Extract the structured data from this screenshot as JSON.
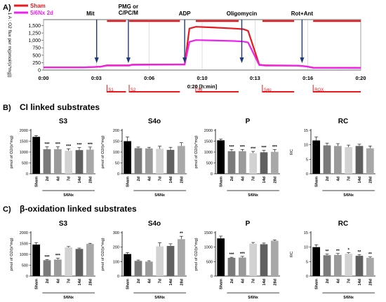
{
  "panel_labels": {
    "a": "A)",
    "b": "B)",
    "c": "C)"
  },
  "section_titles": {
    "b": "CI linked substrates",
    "c": "β-oxidation linked substrates"
  },
  "colors": {
    "sham": "#e8191f",
    "nx": "#ee22ee",
    "arrow": "#1f3a7a",
    "segment": "#e8191f"
  },
  "chart_data": [
    {
      "type": "line",
      "panel": "A",
      "ylabel": "1 A : O2 flux per m(pmol/(s*mg))",
      "xlabel": "0:20 [h:min]",
      "xlim": [
        0,
        20
      ],
      "ylim": [
        0,
        1700
      ],
      "y_ticks": [
        "0",
        "250",
        "500",
        "750",
        "1,000",
        "1,250",
        "1,500"
      ],
      "x_ticks": [
        "0:00",
        "0:03",
        "0:06",
        "0:10",
        "0:13",
        "0:16",
        "0:20"
      ],
      "legend": [
        "Sham",
        "5/6Nx 2d"
      ],
      "series": [
        {
          "name": "Sham",
          "x": [
            0,
            2.5,
            3.6,
            4.0,
            5.4,
            5.6,
            8.4,
            8.9,
            9.2,
            9.6,
            10.5,
            12.0,
            12.6,
            12.9,
            13.6,
            14.0,
            16.0,
            16.6,
            17.0,
            20.0
          ],
          "values": [
            90,
            90,
            115,
            160,
            160,
            185,
            190,
            190,
            1400,
            1460,
            1440,
            1400,
            1380,
            1320,
            180,
            160,
            150,
            120,
            80,
            75
          ]
        },
        {
          "name": "5/6Nx 2d",
          "x": [
            0,
            2.5,
            3.6,
            4.0,
            5.4,
            5.6,
            8.4,
            8.9,
            9.2,
            9.6,
            10.5,
            12.0,
            12.6,
            12.9,
            13.6,
            14.0,
            16.0,
            16.6,
            17.0,
            20.0
          ],
          "values": [
            90,
            90,
            110,
            150,
            150,
            175,
            185,
            185,
            950,
            1010,
            1000,
            980,
            960,
            930,
            170,
            150,
            150,
            120,
            75,
            70
          ]
        }
      ],
      "events": [
        {
          "label": "Mit",
          "x": 3.35
        },
        {
          "label": "PMG or\nC/PC/M",
          "x": 5.35
        },
        {
          "label": "ADP",
          "x": 8.9
        },
        {
          "label": "Oligomycin",
          "x": 12.5
        },
        {
          "label": "Rot+Ant",
          "x": 16.3
        }
      ],
      "segments": [
        {
          "label": "S1",
          "x0": 4.0,
          "x1": 5.2
        },
        {
          "label": "S2",
          "x0": 5.4,
          "x1": 8.6
        },
        {
          "label": "S3",
          "x0": 9.6,
          "x1": 12.3
        },
        {
          "label": "S4o",
          "x0": 13.8,
          "x1": 15.8
        },
        {
          "label": "ROX",
          "x0": 17.0,
          "x1": 20.0
        }
      ]
    },
    {
      "type": "bar",
      "panel": "B",
      "title": "S3",
      "ylabel": "pmol of O2/(s*mg)",
      "categories": [
        "Sham",
        "2d",
        "4d",
        "7d",
        "14d",
        "28d"
      ],
      "group_label": "5/6Nx",
      "values": [
        1700,
        1130,
        1130,
        1060,
        1090,
        1110
      ],
      "errors": [
        60,
        110,
        110,
        90,
        120,
        120
      ],
      "ylim": [
        0,
        2000
      ],
      "y_ticks": [
        "0",
        "500",
        "1000",
        "1500",
        "2000"
      ],
      "significance": [
        "",
        "***",
        "***",
        "***",
        "***",
        "***"
      ]
    },
    {
      "type": "bar",
      "panel": "B",
      "title": "S4o",
      "ylabel": "pmol of O2/(s*mg)",
      "categories": [
        "Sham",
        "2d",
        "4d",
        "7d",
        "14d",
        "28d"
      ],
      "group_label": "5/6Nx",
      "values": [
        150,
        118,
        117,
        115,
        110,
        128
      ],
      "errors": [
        20,
        5,
        5,
        12,
        12,
        15
      ],
      "ylim": [
        0,
        200
      ],
      "y_ticks": [
        "0",
        "50",
        "100",
        "150",
        "200"
      ],
      "significance": [
        "",
        "",
        "",
        "",
        "",
        ""
      ]
    },
    {
      "type": "bar",
      "panel": "B",
      "title": "P",
      "ylabel": "pmol of O2/(s*mg)",
      "categories": [
        "Sham",
        "2d",
        "4d",
        "7d",
        "14d",
        "28d"
      ],
      "group_label": "5/6Nx",
      "values": [
        1540,
        1040,
        1040,
        950,
        990,
        1010
      ],
      "errors": [
        60,
        80,
        80,
        80,
        90,
        110
      ],
      "ylim": [
        0,
        2000
      ],
      "y_ticks": [
        "0",
        "500",
        "1000",
        "1500",
        "2000"
      ],
      "significance": [
        "",
        "***",
        "***",
        "***",
        "***",
        "***"
      ]
    },
    {
      "type": "bar",
      "panel": "B",
      "title": "RC",
      "ylabel": "RC",
      "categories": [
        "Sham",
        "2d",
        "4d",
        "7d",
        "14d",
        "28d"
      ],
      "group_label": "5/6Nx",
      "values": [
        11.5,
        9.8,
        9.6,
        9.2,
        9.6,
        8.8
      ],
      "errors": [
        1.2,
        0.8,
        0.8,
        0.7,
        0.6,
        0.8
      ],
      "ylim": [
        0,
        15
      ],
      "y_ticks": [
        "0",
        "5",
        "10",
        "15"
      ],
      "significance": [
        "",
        "",
        "",
        "",
        "",
        ""
      ]
    },
    {
      "type": "bar",
      "panel": "C",
      "title": "S3",
      "ylabel": "pmol of O2/(s*mg)",
      "categories": [
        "Sham",
        "2d",
        "4d",
        "7d",
        "14d",
        "28d"
      ],
      "group_label": "5/6Nx",
      "values": [
        1450,
        730,
        760,
        1320,
        1250,
        1480
      ],
      "errors": [
        90,
        30,
        60,
        40,
        40,
        30
      ],
      "ylim": [
        0,
        2000
      ],
      "y_ticks": [
        "0",
        "500",
        "1000",
        "1500",
        "2000"
      ],
      "significance": [
        "",
        "***",
        "***",
        "",
        "",
        ""
      ]
    },
    {
      "type": "bar",
      "panel": "C",
      "title": "S4o",
      "ylabel": "pmol of O2/(s*mg)",
      "categories": [
        "Sham",
        "2d",
        "4d",
        "7d",
        "14d",
        "28d"
      ],
      "group_label": "5/6Nx",
      "values": [
        152,
        105,
        100,
        205,
        208,
        255
      ],
      "errors": [
        10,
        6,
        6,
        25,
        15,
        20
      ],
      "ylim": [
        0,
        300
      ],
      "y_ticks": [
        "0",
        "100",
        "200",
        "300"
      ],
      "significance": [
        "",
        "",
        "",
        "",
        "",
        "**"
      ]
    },
    {
      "type": "bar",
      "panel": "C",
      "title": "P",
      "ylabel": "pmol of O2/(s*mg)",
      "categories": [
        "Sham",
        "2d",
        "4d",
        "7d",
        "14d",
        "28d"
      ],
      "group_label": "5/6Nx",
      "values": [
        1300,
        630,
        640,
        1120,
        1100,
        1220
      ],
      "errors": [
        80,
        20,
        40,
        40,
        40,
        30
      ],
      "ylim": [
        0,
        1500
      ],
      "y_ticks": [
        "0",
        "500",
        "1000",
        "1500"
      ],
      "significance": [
        "",
        "***",
        "***",
        "",
        "",
        ""
      ]
    },
    {
      "type": "bar",
      "panel": "C",
      "title": "RC",
      "ylabel": "RC",
      "categories": [
        "Sham",
        "2d",
        "4d",
        "7d",
        "14d",
        "28d"
      ],
      "group_label": "5/6Nx",
      "values": [
        10.0,
        7.2,
        7.3,
        7.7,
        7.0,
        6.3
      ],
      "errors": [
        0.8,
        0.4,
        0.5,
        0.4,
        0.4,
        0.3
      ],
      "ylim": [
        0,
        15
      ],
      "y_ticks": [
        "0",
        "5",
        "10",
        "15"
      ],
      "significance": [
        "",
        "**",
        "**",
        "*",
        "**",
        "**"
      ]
    }
  ]
}
